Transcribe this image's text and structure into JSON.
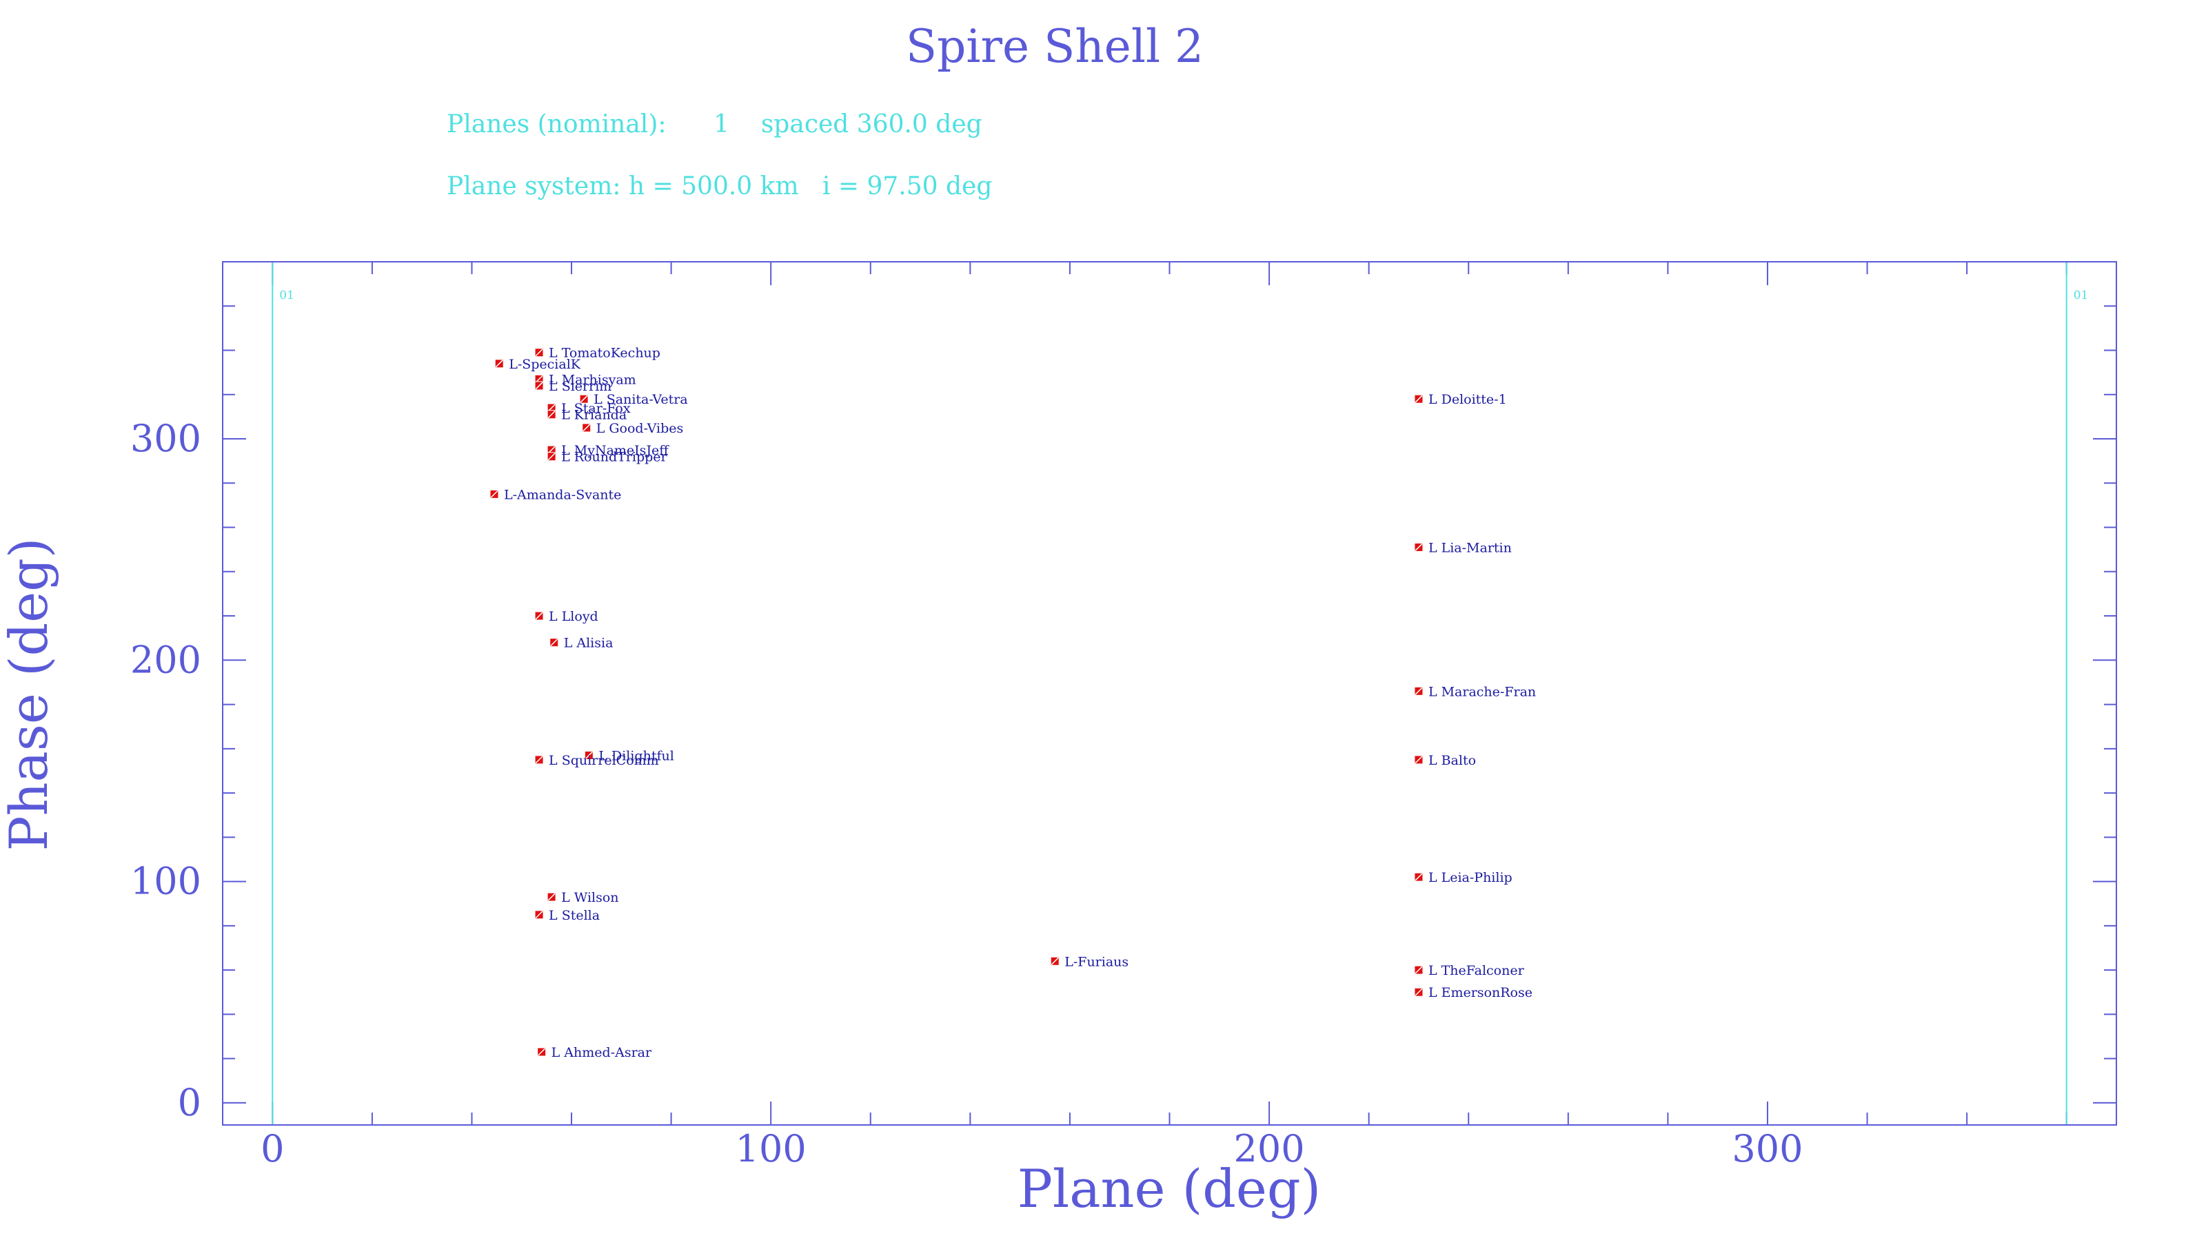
{
  "header": {
    "title": "Spire Shell 2",
    "line1": "Planes (nominal):      1    spaced 360.0 deg",
    "line2": "Plane system: h = 500.0 km   i = 97.50 deg"
  },
  "colors": {
    "frame": "#5a5ad8",
    "plane_line": "#4fe0e0",
    "marker": "#e01010",
    "label": "#1a1aa0"
  },
  "chart_data": {
    "type": "scatter",
    "title": "Spire Shell 2",
    "xlabel": "Plane (deg)",
    "ylabel": "Phase (deg)",
    "xlim": [
      -10,
      370
    ],
    "ylim": [
      -10,
      380
    ],
    "xticks": [
      0,
      100,
      200,
      300
    ],
    "yticks": [
      0,
      100,
      200,
      300
    ],
    "grid": false,
    "plane_lines": [
      {
        "x": 0,
        "label": "01"
      },
      {
        "x": 360,
        "label": "01"
      }
    ],
    "points": [
      {
        "x": 53.5,
        "y": 339,
        "label": "L TomatoKechup"
      },
      {
        "x": 45.5,
        "y": 334,
        "label": "L-SpecialK"
      },
      {
        "x": 53.5,
        "y": 327,
        "label": "L Marhisyam"
      },
      {
        "x": 53.5,
        "y": 324,
        "label": "L Sierrim"
      },
      {
        "x": 62.5,
        "y": 318,
        "label": "L Sanita-Vetra"
      },
      {
        "x": 56,
        "y": 314,
        "label": "L Star-Fox"
      },
      {
        "x": 56,
        "y": 311,
        "label": "L Krianda"
      },
      {
        "x": 63,
        "y": 305,
        "label": "L Good-Vibes"
      },
      {
        "x": 56,
        "y": 295,
        "label": "L MyNameIsJeff"
      },
      {
        "x": 56,
        "y": 292,
        "label": "L RoundTripper"
      },
      {
        "x": 44.5,
        "y": 275,
        "label": "L-Amanda-Svante"
      },
      {
        "x": 53.5,
        "y": 220,
        "label": "L Lloyd"
      },
      {
        "x": 56.5,
        "y": 208,
        "label": "L Alisia"
      },
      {
        "x": 63.5,
        "y": 157,
        "label": "L Dilightful"
      },
      {
        "x": 53.5,
        "y": 155,
        "label": "L SquirrelComm"
      },
      {
        "x": 56,
        "y": 93,
        "label": "L Wilson"
      },
      {
        "x": 53.5,
        "y": 85,
        "label": "L Stella"
      },
      {
        "x": 54,
        "y": 23,
        "label": "L Ahmed-Asrar"
      },
      {
        "x": 157,
        "y": 64,
        "label": "L-Furiaus"
      },
      {
        "x": 230,
        "y": 318,
        "label": "L Deloitte-1"
      },
      {
        "x": 230,
        "y": 251,
        "label": "L Lia-Martin"
      },
      {
        "x": 230,
        "y": 186,
        "label": "L Marache-Fran"
      },
      {
        "x": 230,
        "y": 155,
        "label": "L Balto"
      },
      {
        "x": 230,
        "y": 102,
        "label": "L Leia-Philip"
      },
      {
        "x": 230,
        "y": 60,
        "label": "L TheFalconer"
      },
      {
        "x": 230,
        "y": 50,
        "label": "L EmersonRose"
      }
    ]
  }
}
